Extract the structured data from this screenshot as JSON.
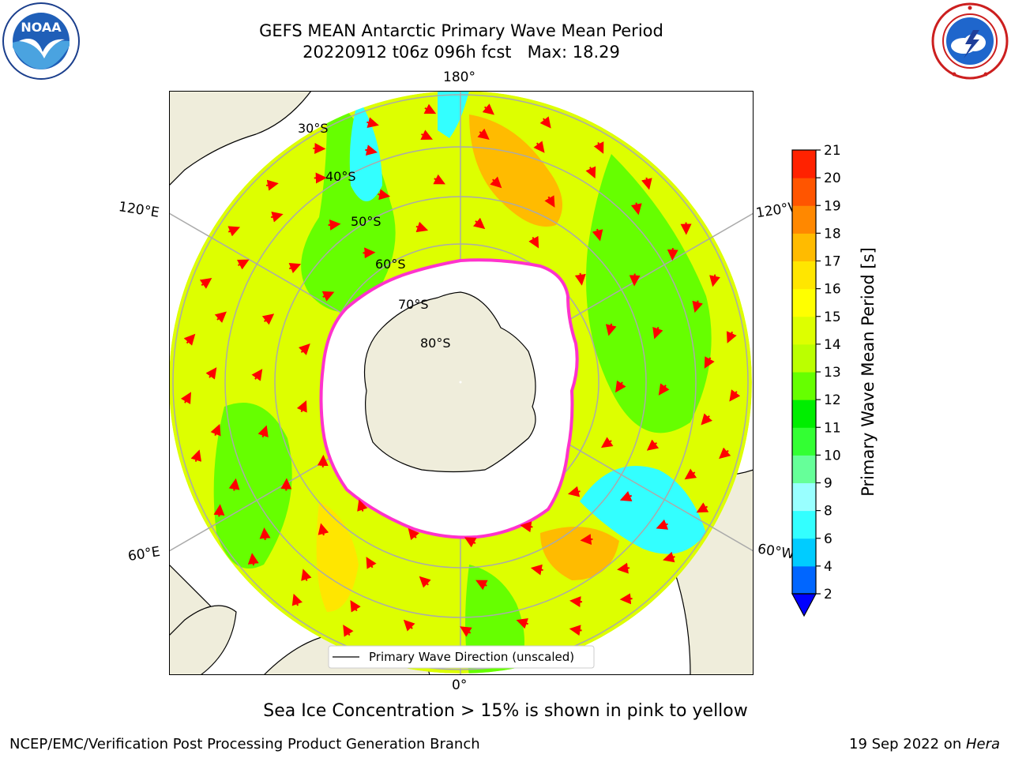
{
  "title": {
    "line1": "GEFS MEAN Antarctic Primary Wave Mean Period",
    "line2": "20220912 t06z 096h fcst   Max: 18.29"
  },
  "logos": {
    "left": "noaa-logo",
    "left_text": "NOAA",
    "right": "nws-logo"
  },
  "map": {
    "projection": "south-polar-stereographic",
    "longitude_labels": {
      "top": "180°",
      "bottom": "0°",
      "upper_left": "120°E",
      "upper_right": "120°W",
      "lower_left": "60°E",
      "lower_right": "60°W"
    },
    "latitude_labels": [
      "30°S",
      "40°S",
      "50°S",
      "60°S",
      "70°S",
      "80°S"
    ],
    "legend": "Primary Wave Direction (unscaled)",
    "arrow_color": "#ff0000",
    "land_color": "#efeddb",
    "sea_ice_edge_color": "#ff33cc"
  },
  "colorbar": {
    "label": "Primary Wave Mean Period [s]",
    "ticks": [
      "2",
      "4",
      "6",
      "8",
      "9",
      "10",
      "11",
      "12",
      "13",
      "14",
      "15",
      "16",
      "17",
      "18",
      "19",
      "20",
      "21"
    ],
    "colors": [
      "#0066ff",
      "#00ccff",
      "#33ffff",
      "#99ffff",
      "#66ff99",
      "#33ff33",
      "#00ee00",
      "#66ff00",
      "#bbff00",
      "#ddff00",
      "#ffff00",
      "#ffe600",
      "#ffbb00",
      "#ff8800",
      "#ff5500",
      "#ff2200"
    ],
    "extend_min_color": "#0000ff"
  },
  "footnote": "Sea Ice Concentration > 15% is shown in pink to yellow",
  "footer": {
    "left": "NCEP/EMC/Verification Post Processing Product Generation Branch",
    "right_prefix": "19 Sep 2022 on ",
    "right_italic": "Hera"
  }
}
